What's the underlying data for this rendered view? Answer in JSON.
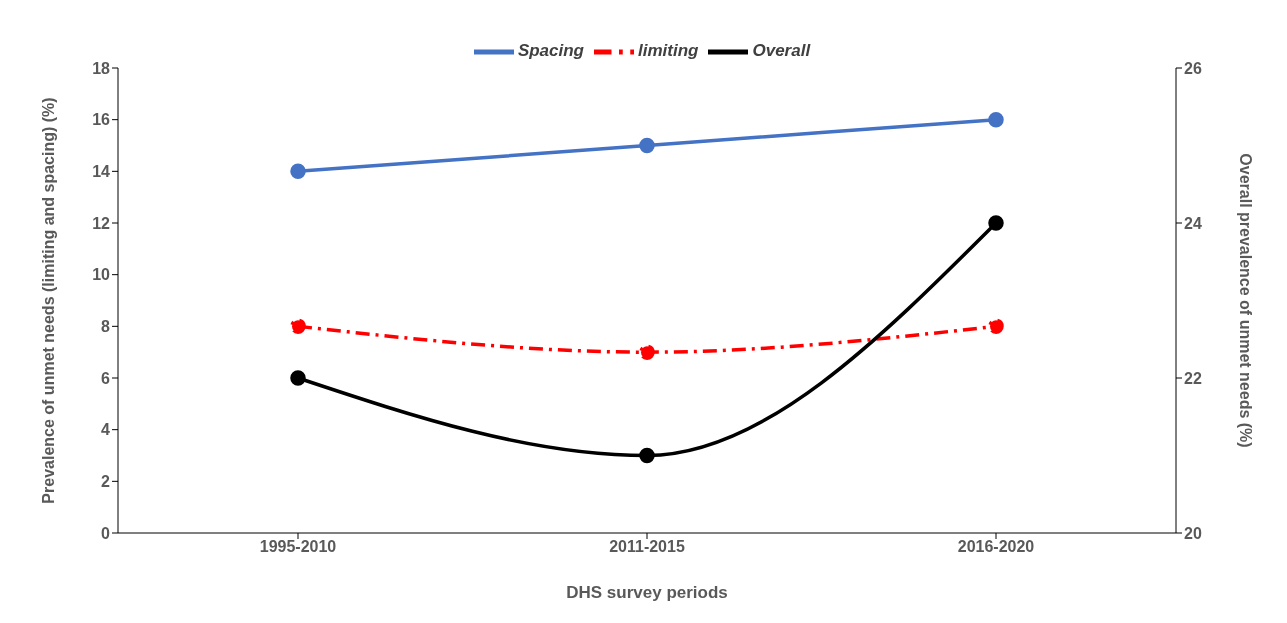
{
  "chart_data": {
    "type": "line",
    "xlabel": "DHS survey periods",
    "ylabel": "Prevalence of unmet needs (limiting and spacing) (%)",
    "y2label": "Overall prevalence of unmet needs (%)",
    "categories": [
      "1995-2010",
      "2011-2015",
      "2016-2020"
    ],
    "series": [
      {
        "name": "Spacing",
        "color": "#4472c4",
        "values": [
          14,
          15,
          16
        ],
        "line_style": "solid"
      },
      {
        "name": "limiting",
        "color": "#ff0000",
        "values": [
          8,
          7,
          8
        ],
        "line_style": "dashed"
      },
      {
        "name": "Overall",
        "color": "#000000",
        "values": [
          22,
          21,
          24
        ],
        "axis": "y2",
        "line_style": "solid"
      }
    ],
    "ylim": [
      0,
      18
    ],
    "yticks": [
      0,
      2,
      4,
      6,
      8,
      10,
      12,
      14,
      16,
      18
    ],
    "y2lim": [
      20,
      26
    ],
    "y2ticks": [
      20,
      22,
      24,
      26
    ],
    "grid": false,
    "legend": "top",
    "marker": "circle"
  }
}
